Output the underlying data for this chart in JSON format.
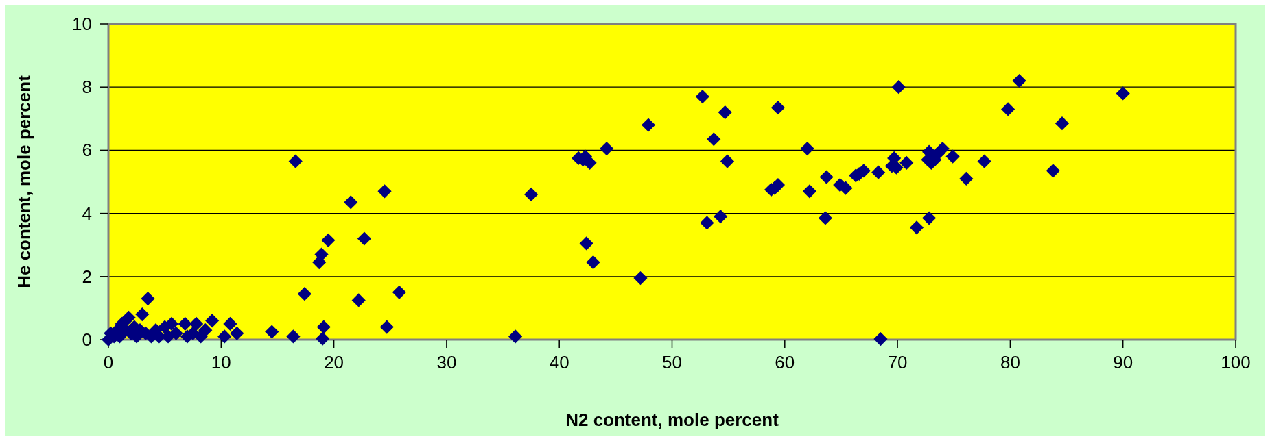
{
  "chart_data": {
    "type": "scatter",
    "xlabel": "N2 content, mole percent",
    "ylabel": "He content, mole percent",
    "xlim": [
      0,
      100
    ],
    "xticks": [
      0,
      10,
      20,
      30,
      40,
      50,
      60,
      70,
      80,
      90,
      100
    ],
    "ylim": [
      0,
      10
    ],
    "yticks": [
      0,
      2,
      4,
      6,
      8,
      10
    ],
    "grid": "y",
    "marker": "diamond",
    "series": [
      {
        "color": "#000080",
        "x": [
          0,
          0.2,
          0.5,
          0.8,
          1,
          1.2,
          1.5,
          1.8,
          2,
          2.3,
          2.5,
          2.8,
          3,
          3.3,
          3.5,
          3.8,
          4.2,
          4.5,
          5,
          5.3,
          5.6,
          6,
          6.8,
          7,
          7.5,
          7.8,
          8.2,
          8.6,
          9.2,
          10.3,
          10.8,
          11.4,
          14.5,
          16.4,
          16.6,
          17.4,
          18.7,
          18.9,
          19,
          19.1,
          19.5,
          21.5,
          22.2,
          22.7,
          24.5,
          24.7,
          25.8,
          36.1,
          37.5,
          41.7,
          42.1,
          42.3,
          42.4,
          42.7,
          43,
          44.2,
          47.2,
          47.9,
          52.7,
          53.1,
          53.7,
          54.3,
          54.7,
          54.9,
          58.8,
          59.1,
          59.4,
          59.4,
          62,
          62.2,
          63.6,
          63.7,
          64.9,
          65.4,
          66.3,
          66.6,
          67,
          68.3,
          68.5,
          69.5,
          69.7,
          69.9,
          70.1,
          70.8,
          71.7,
          72.7,
          72.8,
          72.8,
          73,
          73.3,
          73.6,
          74,
          74.9,
          76.1,
          77.7,
          79.8,
          80.8,
          83.8,
          84.6,
          90
        ],
        "values": [
          0,
          0.2,
          0.1,
          0.3,
          0.1,
          0.5,
          0.3,
          0.7,
          0.2,
          0.4,
          0.1,
          0.3,
          0.8,
          0.2,
          1.3,
          0.1,
          0.3,
          0.1,
          0.4,
          0.1,
          0.5,
          0.2,
          0.5,
          0.1,
          0.2,
          0.5,
          0.1,
          0.3,
          0.6,
          0.1,
          0.5,
          0.2,
          0.25,
          0.1,
          5.65,
          1.45,
          2.45,
          2.7,
          0.03,
          0.4,
          3.15,
          4.35,
          1.25,
          3.2,
          4.7,
          0.4,
          1.5,
          0.1,
          4.6,
          5.75,
          5.7,
          5.8,
          3.05,
          5.6,
          2.45,
          6.05,
          1.95,
          6.8,
          7.7,
          3.7,
          6.35,
          3.9,
          7.2,
          5.65,
          4.75,
          4.8,
          7.35,
          4.9,
          6.05,
          4.7,
          3.85,
          5.15,
          4.9,
          4.8,
          5.2,
          5.25,
          5.35,
          5.3,
          0.02,
          5.5,
          5.75,
          5.45,
          8,
          5.6,
          3.55,
          5.7,
          5.95,
          3.85,
          5.6,
          5.7,
          5.9,
          6.05,
          5.8,
          5.1,
          5.65,
          7.3,
          8.2,
          5.35,
          6.85,
          7.8
        ]
      }
    ]
  }
}
